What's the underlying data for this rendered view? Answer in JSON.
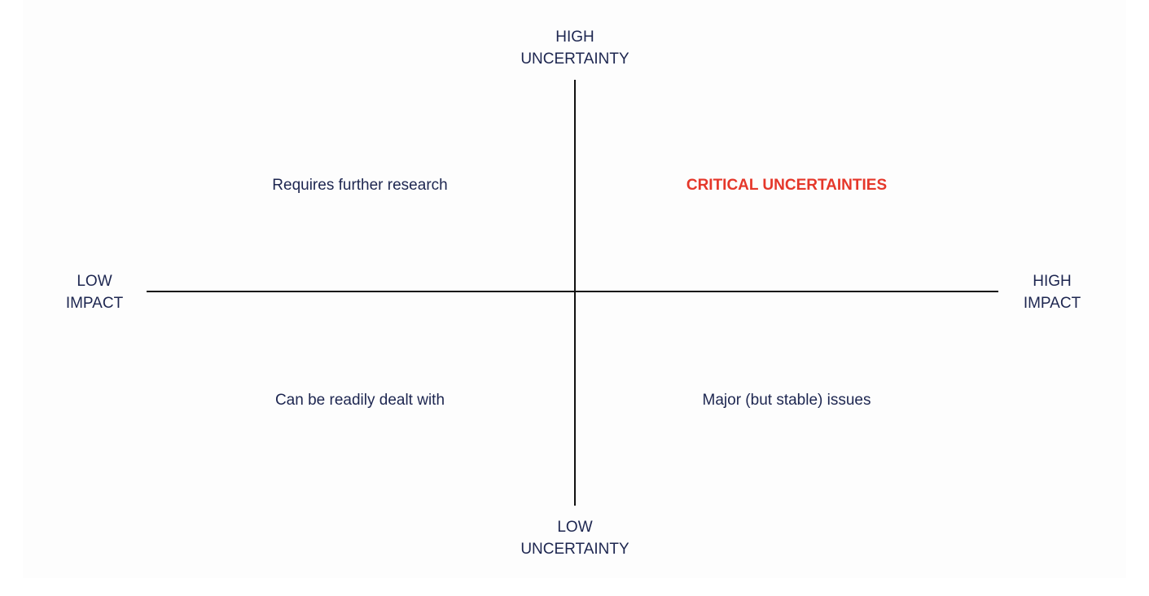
{
  "axes": {
    "top": [
      "HIGH",
      "UNCERTAINTY"
    ],
    "bottom": [
      "LOW",
      "UNCERTAINTY"
    ],
    "left": [
      "LOW",
      "IMPACT"
    ],
    "right": [
      "HIGH",
      "IMPACT"
    ]
  },
  "quadrants": {
    "top_left": "Requires further research",
    "top_right": "CRITICAL UNCERTAINTIES",
    "bottom_left": "Can be readily dealt with",
    "bottom_right": "Major (but stable) issues"
  }
}
